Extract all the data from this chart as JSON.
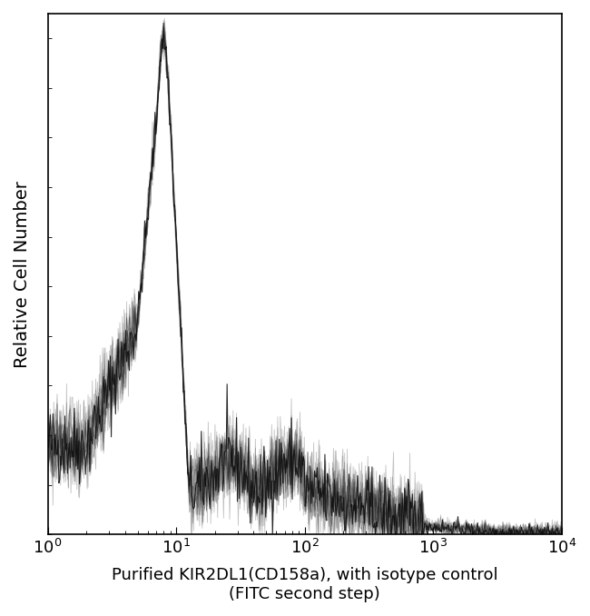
{
  "xlabel_line1": "Purified KIR2DL1(CD158a), with isotype control",
  "xlabel_line2": "(FITC second step)",
  "ylabel": "Relative Cell Number",
  "xlim": [
    1,
    10000
  ],
  "ylim": [
    0,
    1.05
  ],
  "line_color": "#111111",
  "bg_color": "#ffffff",
  "figsize": [
    6.5,
    6.78
  ],
  "dpi": 100,
  "seed": 42,
  "noise_amplitude": 0.04,
  "n_lines": 12
}
